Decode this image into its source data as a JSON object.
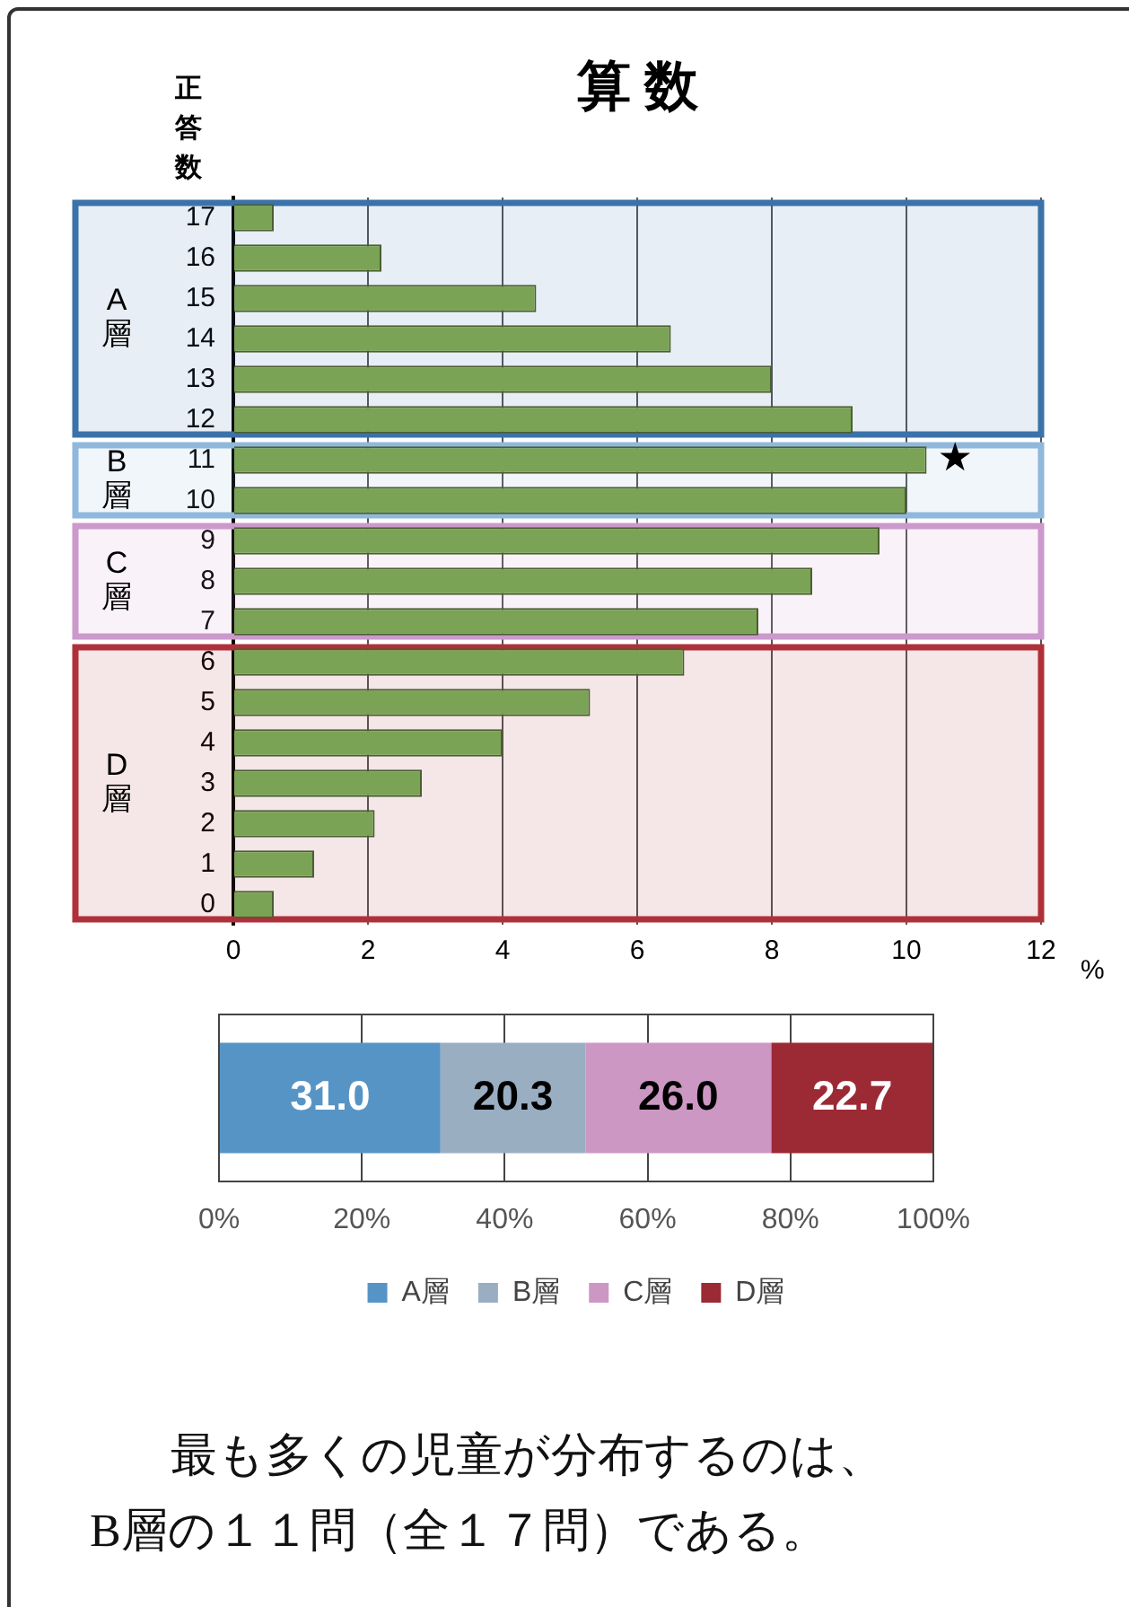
{
  "chart_data": [
    {
      "type": "bar",
      "orientation": "horizontal",
      "title": "算 数",
      "ylabel": "正答数",
      "xlabel": "%",
      "categories": [
        "17",
        "16",
        "15",
        "14",
        "13",
        "12",
        "11",
        "10",
        "9",
        "8",
        "7",
        "6",
        "5",
        "4",
        "3",
        "2",
        "1",
        "0"
      ],
      "values": [
        0.6,
        2.2,
        4.5,
        6.5,
        8.0,
        9.2,
        10.3,
        10.0,
        9.6,
        8.6,
        7.8,
        6.7,
        5.3,
        4.0,
        2.8,
        2.1,
        1.2,
        0.6
      ],
      "color": "#7aa355",
      "xlim": [
        0,
        12
      ],
      "xticks": [
        0,
        2,
        4,
        6,
        8,
        10,
        12
      ],
      "grid": "x",
      "legend": false,
      "bands": [
        {
          "axis": "y",
          "from": "17",
          "to": "12",
          "label": "A層",
          "color": "#3b72a9"
        },
        {
          "axis": "y",
          "from": "11",
          "to": "10",
          "label": "B層",
          "color": "#8fb8dc"
        },
        {
          "axis": "y",
          "from": "9",
          "to": "7",
          "label": "C層",
          "color": "#cc99cc"
        },
        {
          "axis": "y",
          "from": "6",
          "to": "0",
          "label": "D層",
          "color": "#b0303a"
        }
      ],
      "annotations": [
        {
          "text": "★",
          "x": 10.3,
          "y": "11"
        }
      ]
    },
    {
      "type": "bar",
      "orientation": "horizontal",
      "stacked": true,
      "categories": [
        null
      ],
      "series": [
        {
          "name": "A層",
          "color": "#5794c6",
          "values": [
            31.0
          ],
          "value_labels": [
            "31.0"
          ]
        },
        {
          "name": "B層",
          "color": "#9aaec2",
          "values": [
            20.3
          ],
          "value_labels": [
            "20.3"
          ]
        },
        {
          "name": "C層",
          "color": "#cd97c4",
          "values": [
            26.0
          ],
          "value_labels": [
            "26.0"
          ]
        },
        {
          "name": "D層",
          "color": "#9b2a35",
          "values": [
            22.7
          ],
          "value_labels": [
            "22.7"
          ]
        }
      ],
      "xlim": [
        0,
        100
      ],
      "xticks": [
        {
          "value": 0,
          "label": "0%"
        },
        {
          "value": 20,
          "label": "20%"
        },
        {
          "value": 40,
          "label": "40%"
        },
        {
          "value": 60,
          "label": "60%"
        },
        {
          "value": 80,
          "label": "80%"
        },
        {
          "value": 100,
          "label": "100%"
        }
      ],
      "grid": "x",
      "legend": "bottom",
      "annotations": [
        "最も多くの児童が分布するのは、",
        "B層の１１問（全１７問）である。"
      ]
    }
  ]
}
